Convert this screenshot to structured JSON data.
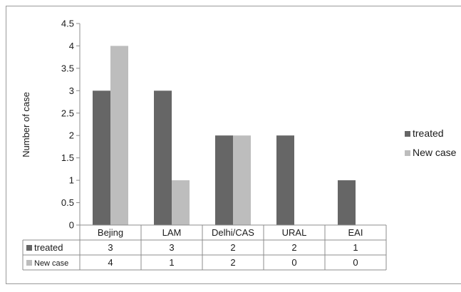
{
  "chart_data": {
    "type": "bar",
    "title": "",
    "xlabel": "",
    "ylabel": "Number of case",
    "categories": [
      "Bejing",
      "LAM",
      "Delhi/CAS",
      "URAL",
      "EAI"
    ],
    "series": [
      {
        "name": "treated",
        "values": [
          3,
          3,
          2,
          2,
          1
        ],
        "color": "#666666"
      },
      {
        "name": "New case",
        "values": [
          4,
          1,
          2,
          0,
          0
        ],
        "color": "#bdbdbd"
      }
    ],
    "ylim": [
      0,
      4.5
    ],
    "yticks": [
      "0",
      "0.5",
      "1",
      "1.5",
      "2",
      "2.5",
      "3",
      "3.5",
      "4",
      "4.5"
    ],
    "grid": false,
    "legend_position": "right",
    "data_table": true
  }
}
